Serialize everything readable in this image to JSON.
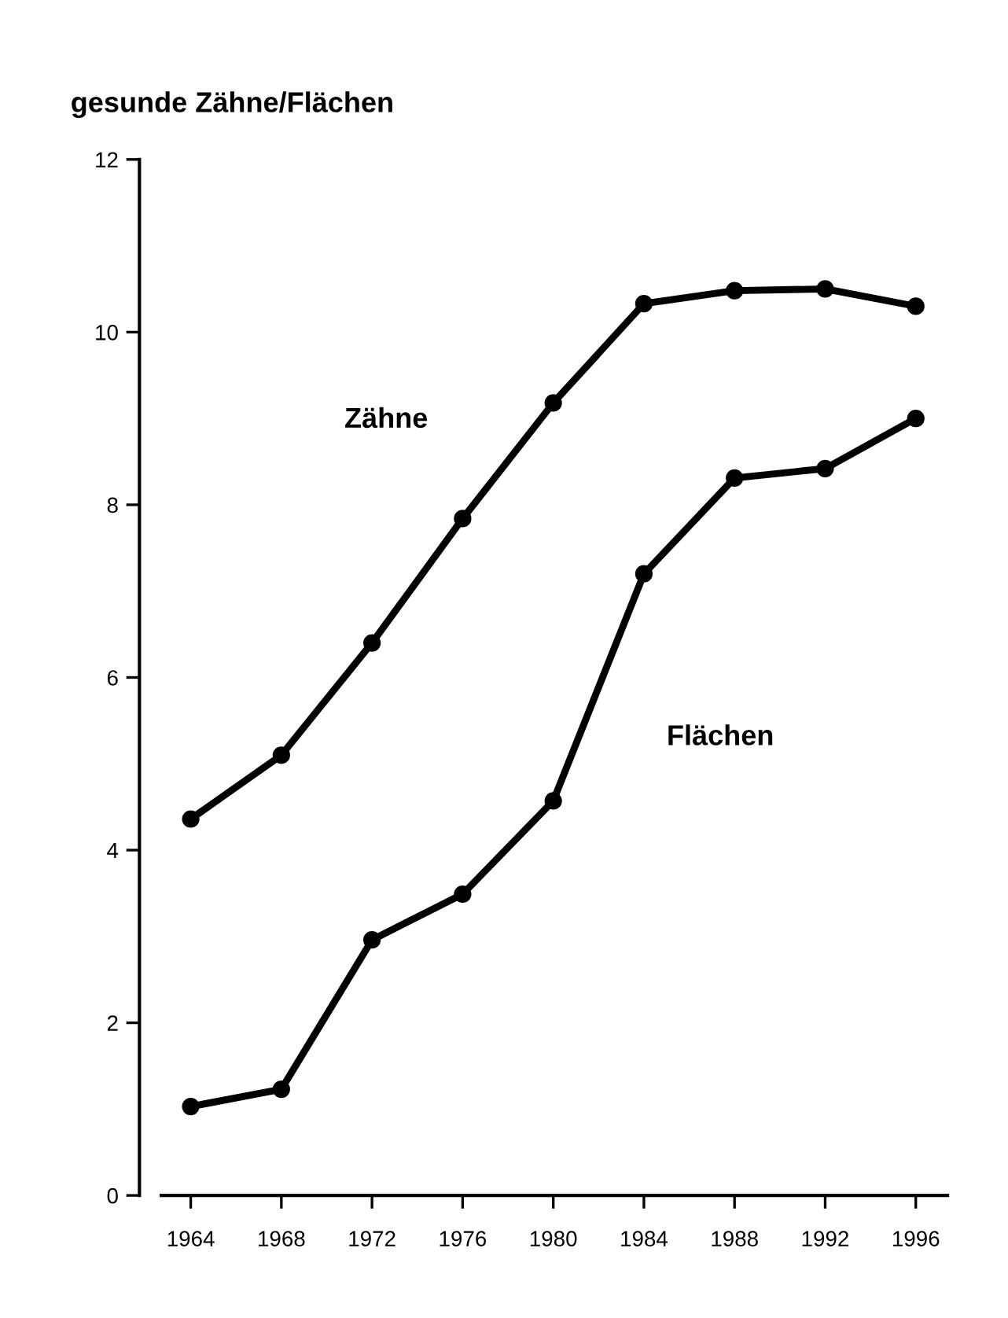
{
  "chart_data": {
    "type": "line",
    "title": "gesunde Zähne/Flächen",
    "x": [
      1964,
      1968,
      1972,
      1976,
      1980,
      1984,
      1988,
      1992,
      1996
    ],
    "series": [
      {
        "name": "Zähne",
        "color": "#000000",
        "values": [
          4.36,
          5.1,
          6.4,
          7.84,
          9.18,
          10.33,
          10.48,
          10.5,
          10.3
        ]
      },
      {
        "name": "Flächen",
        "color": "#000000",
        "values": [
          1.03,
          1.23,
          2.96,
          3.49,
          4.57,
          7.2,
          8.31,
          8.42,
          9.0
        ]
      }
    ],
    "xlim": [
      1962.7,
      1997.4
    ],
    "xticks": [
      1964,
      1968,
      1972,
      1976,
      1980,
      1984,
      1988,
      1992,
      1996
    ],
    "ylim": [
      0,
      12
    ],
    "yticks": [
      0,
      2,
      4,
      6,
      8,
      10,
      12
    ],
    "marker": "circle",
    "line_style": "solid",
    "grid": false,
    "legend": false
  }
}
